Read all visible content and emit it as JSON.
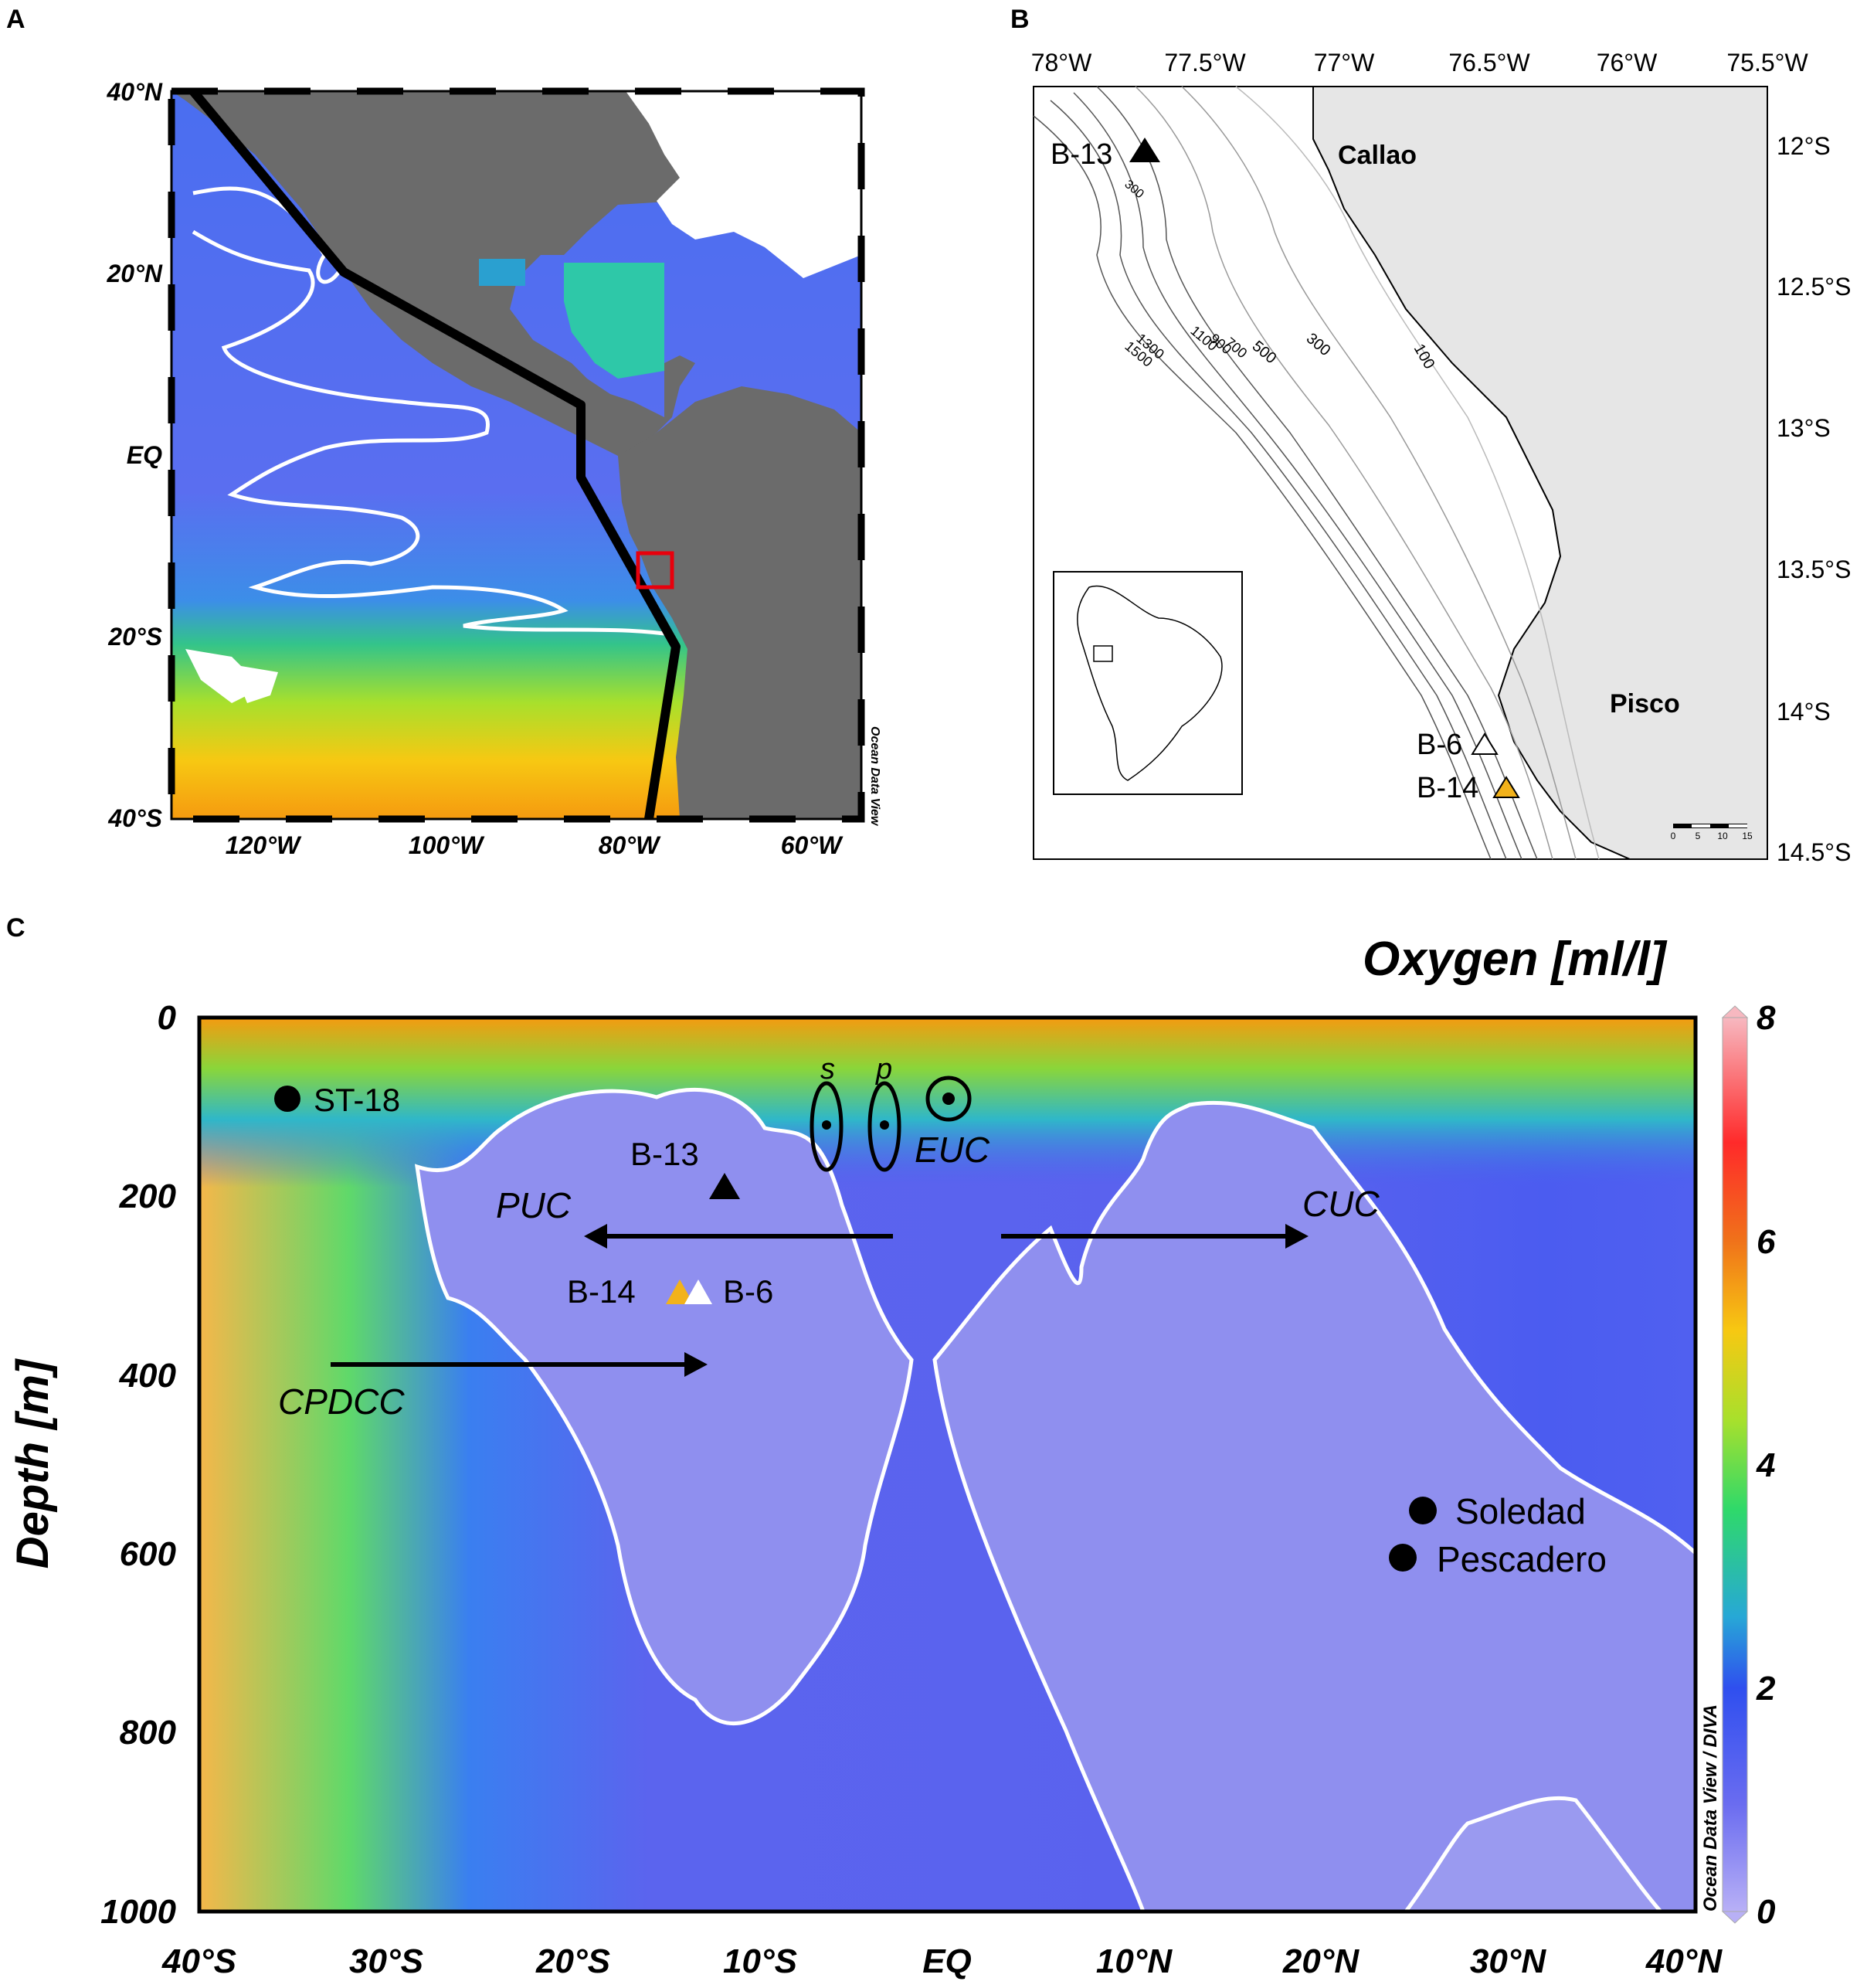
{
  "panelA": {
    "letter": "A",
    "lat_labels": [
      "40°N",
      "20°N",
      "EQ",
      "20°S",
      "40°S"
    ],
    "lon_labels": [
      "120°W",
      "100°W",
      "80°W",
      "60°W"
    ],
    "credit": "Ocean Data View"
  },
  "panelB": {
    "letter": "B",
    "lon_labels": [
      "78°W",
      "77.5°W",
      "77°W",
      "76.5°W",
      "76°W",
      "75.5°W"
    ],
    "lat_labels": [
      "12°S",
      "12.5°S",
      "13°S",
      "13.5°S",
      "14°S",
      "14.5°S"
    ],
    "places": {
      "callao": "Callao",
      "pisco": "Pisco"
    },
    "stations": {
      "b13": "B-13",
      "b6": "B-6",
      "b14": "B-14"
    },
    "contour_labels": [
      "100",
      "300",
      "500",
      "700",
      "900",
      "1100",
      "1300",
      "1500",
      "300"
    ],
    "scalebar_labels": [
      "0",
      "5",
      "10",
      "15"
    ]
  },
  "panelC": {
    "letter": "C",
    "title": "Oxygen [ml/l]",
    "ylabel": "Depth [m]",
    "y_ticks": [
      "0",
      "200",
      "400",
      "600",
      "800",
      "1000"
    ],
    "x_ticks": [
      "40°S",
      "30°S",
      "20°S",
      "10°S",
      "EQ",
      "10°N",
      "20°N",
      "30°N",
      "40°N"
    ],
    "colorbar_ticks": [
      "8",
      "6",
      "4",
      "2",
      "0"
    ],
    "colorbar_range": [
      0,
      8
    ],
    "credit": "Ocean Data View / DIVA",
    "currents": {
      "s": "s",
      "p": "p",
      "euc": "EUC",
      "puc": "PUC",
      "cuc": "CUC",
      "cpdcc": "CPDCC"
    },
    "stations": {
      "st18": "ST-18",
      "b13": "B-13",
      "b14": "B-14",
      "b6": "B-6",
      "soledad": "Soledad",
      "pescadero": "Pescadero"
    }
  },
  "colors": {
    "omz_low": "#8f8fef",
    "mid_blue": "#3f56e6",
    "high_o2": "#f5a000",
    "land_gray": "#6b6b6b",
    "b14_marker": "#f2b21b",
    "red_box": "#e8000c"
  }
}
